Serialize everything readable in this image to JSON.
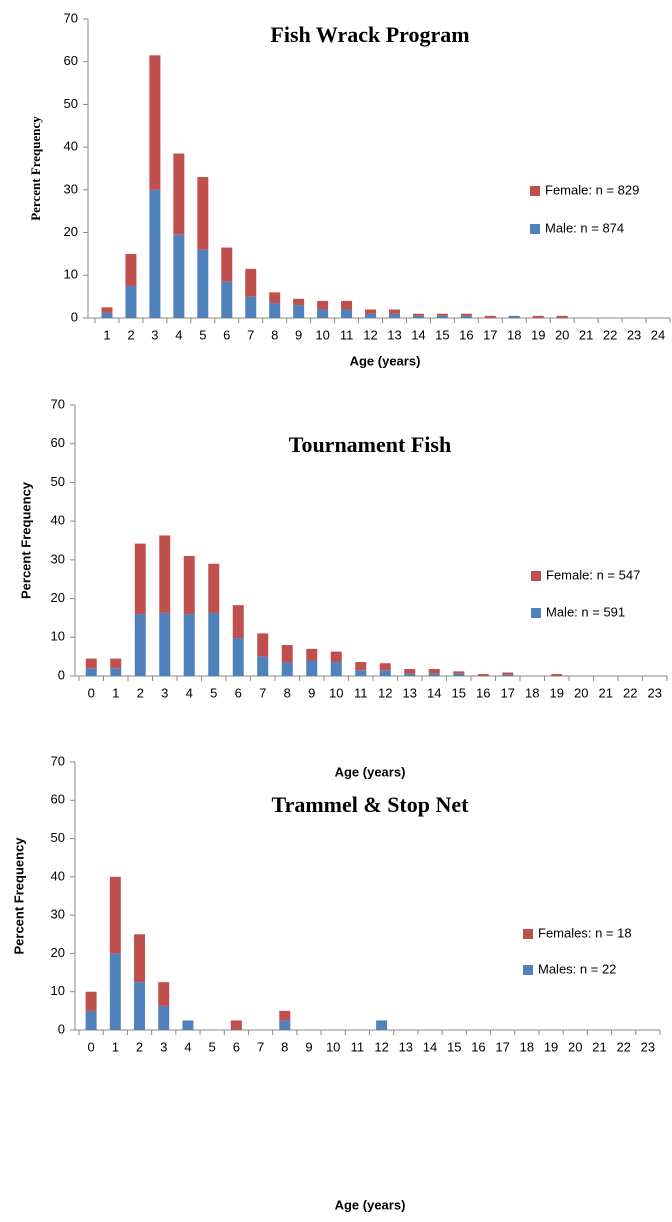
{
  "chart_data": [
    {
      "type": "bar",
      "stacked": true,
      "title": "Fish Wrack Program",
      "x_label": "Age (years)",
      "y_label": "Percent Frequency",
      "categories": [
        "1",
        "2",
        "3",
        "4",
        "5",
        "6",
        "7",
        "8",
        "9",
        "10",
        "11",
        "12",
        "13",
        "14",
        "15",
        "16",
        "17",
        "18",
        "19",
        "20",
        "21",
        "22",
        "23",
        "24"
      ],
      "series": [
        {
          "name": "Male: n = 874",
          "color": "#4f81bd",
          "values": [
            1.2,
            7.5,
            30,
            19.5,
            16,
            8.5,
            5,
            3.5,
            3,
            2,
            2,
            1,
            1,
            0.5,
            0.5,
            0.5,
            0,
            0.5,
            0,
            0,
            0,
            0,
            0,
            0
          ]
        },
        {
          "name": "Female: n = 829",
          "color": "#c0504d",
          "values": [
            1.3,
            7.5,
            31.5,
            19,
            17,
            8,
            6.5,
            2.5,
            1.5,
            2,
            2,
            1,
            1,
            0.5,
            0.5,
            0.5,
            0.5,
            0,
            0.5,
            0.5,
            0,
            0,
            0,
            0
          ]
        }
      ],
      "ylim": [
        0,
        70
      ],
      "yticks": [
        0,
        10,
        20,
        30,
        40,
        50,
        60,
        70
      ]
    },
    {
      "type": "bar",
      "stacked": true,
      "title": "Tournament Fish",
      "x_label": "Age (years)",
      "y_label": "Percent Frequency",
      "categories": [
        "0",
        "1",
        "2",
        "3",
        "4",
        "5",
        "6",
        "7",
        "8",
        "9",
        "10",
        "11",
        "12",
        "13",
        "14",
        "15",
        "16",
        "17",
        "18",
        "19",
        "20",
        "21",
        "22",
        "23"
      ],
      "series": [
        {
          "name": "Male: n = 591",
          "color": "#4f81bd",
          "values": [
            2,
            2,
            16,
            16.3,
            16,
            16.3,
            9.8,
            5,
            3.5,
            4,
            3.6,
            1.5,
            1.5,
            0.6,
            0.6,
            0.6,
            0,
            0.3,
            0,
            0,
            0,
            0,
            0,
            0
          ]
        },
        {
          "name": "Female: n = 547",
          "color": "#c0504d",
          "values": [
            2.5,
            2.5,
            18.2,
            20,
            15,
            12.7,
            8.5,
            6,
            4.5,
            3,
            2.7,
            2.1,
            1.8,
            1.2,
            1.2,
            0.6,
            0.5,
            0.6,
            0,
            0.5,
            0,
            0,
            0,
            0
          ]
        }
      ],
      "ylim": [
        0,
        70
      ],
      "yticks": [
        0,
        10,
        20,
        30,
        40,
        50,
        60,
        70
      ]
    },
    {
      "type": "bar",
      "stacked": true,
      "title": "Trammel & Stop Net",
      "x_label": "Age (years)",
      "y_label": "Percent Frequency",
      "categories": [
        "0",
        "1",
        "2",
        "3",
        "4",
        "5",
        "6",
        "7",
        "8",
        "9",
        "10",
        "11",
        "12",
        "13",
        "14",
        "15",
        "16",
        "17",
        "18",
        "19",
        "20",
        "21",
        "22",
        "23"
      ],
      "series": [
        {
          "name": "Males: n = 22",
          "color": "#4f81bd",
          "values": [
            5,
            20,
            12.5,
            6.3,
            2.5,
            0,
            0,
            0,
            2.5,
            0,
            0,
            0,
            2.5,
            0,
            0,
            0,
            0,
            0,
            0,
            0,
            0,
            0,
            0,
            0
          ]
        },
        {
          "name": "Females: n = 18",
          "color": "#c0504d",
          "values": [
            5,
            20,
            12.5,
            6.2,
            0,
            0,
            2.5,
            0,
            2.5,
            0,
            0,
            0,
            0,
            0,
            0,
            0,
            0,
            0,
            0,
            0,
            0,
            0,
            0,
            0
          ]
        }
      ],
      "ylim": [
        0,
        70
      ],
      "yticks": [
        0,
        10,
        20,
        30,
        40,
        50,
        60,
        70
      ]
    }
  ]
}
